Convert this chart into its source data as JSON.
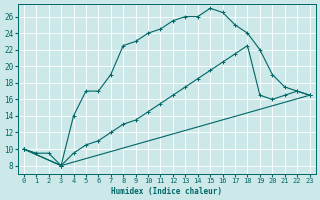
{
  "xlabel": "Humidex (Indice chaleur)",
  "bg_color": "#cce8e8",
  "grid_color": "#b0d0d0",
  "line_color": "#006666",
  "xlim": [
    -0.5,
    23.5
  ],
  "ylim": [
    7,
    27.5
  ],
  "xticks": [
    0,
    1,
    2,
    3,
    4,
    5,
    6,
    7,
    8,
    9,
    10,
    11,
    12,
    13,
    14,
    15,
    16,
    17,
    18,
    19,
    20,
    21,
    22,
    23
  ],
  "yticks": [
    8,
    10,
    12,
    14,
    16,
    18,
    20,
    22,
    24,
    26
  ],
  "line1_x": [
    0,
    1,
    2,
    3,
    4,
    5,
    6,
    7,
    8,
    9,
    10,
    11,
    12,
    13,
    14,
    15,
    16,
    17,
    18,
    19,
    20,
    21,
    22,
    23
  ],
  "line1_y": [
    10,
    9.5,
    9.5,
    8.0,
    14.0,
    17.0,
    17.0,
    19.0,
    22.5,
    23.0,
    24.0,
    24.5,
    25.5,
    26.0,
    26.0,
    27.0,
    26.5,
    25.0,
    24.0,
    22.0,
    19.0,
    17.5,
    17.0,
    16.5
  ],
  "line2_x": [
    0,
    3,
    4,
    5,
    6,
    7,
    8,
    9,
    10,
    11,
    12,
    13,
    14,
    15,
    16,
    17,
    18,
    19,
    20,
    21,
    22,
    23
  ],
  "line2_y": [
    10,
    8.0,
    9.5,
    10.5,
    11.0,
    12.0,
    13.0,
    13.5,
    14.5,
    15.5,
    16.5,
    17.5,
    18.5,
    19.5,
    20.5,
    21.5,
    22.5,
    16.5,
    16.0,
    16.5,
    17.0,
    16.5
  ],
  "line3_x": [
    0,
    3,
    23
  ],
  "line3_y": [
    10,
    8.0,
    16.5
  ]
}
